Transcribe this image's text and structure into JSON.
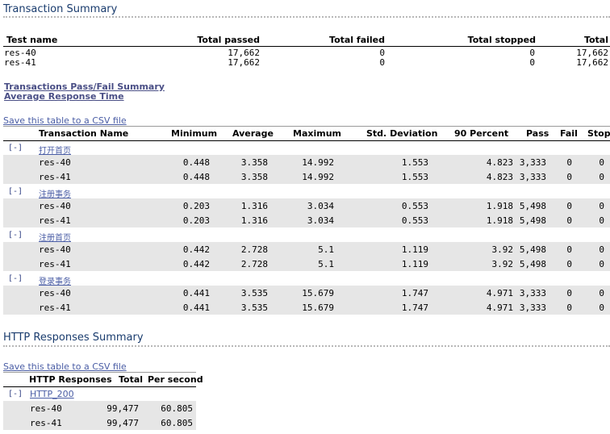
{
  "transaction_summary": {
    "title": "Transaction Summary",
    "headers": [
      "Test name",
      "Total passed",
      "Total failed",
      "Total stopped",
      "Total"
    ],
    "rows": [
      [
        "res-40",
        "17,662",
        "0",
        "0",
        "17,662"
      ],
      [
        "res-41",
        "17,662",
        "0",
        "0",
        "17,662"
      ]
    ]
  },
  "links": {
    "pass_fail": "Transactions Pass/Fail Summary",
    "avg_response": "Average Response Time"
  },
  "transactions_table": {
    "csv_link": "Save this table to a CSV file",
    "headers": [
      "Transaction Name",
      "Minimum",
      "Average",
      "Maximum",
      "Std. Deviation",
      "90 Percent",
      "Pass",
      "Fail",
      "Stop"
    ],
    "groups": [
      {
        "toggle": "[-]",
        "name": "打开首页",
        "rows": [
          [
            "res-40",
            "0.448",
            "3.358",
            "14.992",
            "1.553",
            "4.823",
            "3,333",
            "0",
            "0"
          ],
          [
            "res-41",
            "0.448",
            "3.358",
            "14.992",
            "1.553",
            "4.823",
            "3,333",
            "0",
            "0"
          ]
        ]
      },
      {
        "toggle": "[-]",
        "name": "注册事务",
        "rows": [
          [
            "res-40",
            "0.203",
            "1.316",
            "3.034",
            "0.553",
            "1.918",
            "5,498",
            "0",
            "0"
          ],
          [
            "res-41",
            "0.203",
            "1.316",
            "3.034",
            "0.553",
            "1.918",
            "5,498",
            "0",
            "0"
          ]
        ]
      },
      {
        "toggle": "[-]",
        "name": "注册首页",
        "rows": [
          [
            "res-40",
            "0.442",
            "2.728",
            "5.1",
            "1.119",
            "3.92",
            "5,498",
            "0",
            "0"
          ],
          [
            "res-41",
            "0.442",
            "2.728",
            "5.1",
            "1.119",
            "3.92",
            "5,498",
            "0",
            "0"
          ]
        ]
      },
      {
        "toggle": "[-]",
        "name": "登录事务",
        "rows": [
          [
            "res-40",
            "0.441",
            "3.535",
            "15.679",
            "1.747",
            "4.971",
            "3,333",
            "0",
            "0"
          ],
          [
            "res-41",
            "0.441",
            "3.535",
            "15.679",
            "1.747",
            "4.971",
            "3,333",
            "0",
            "0"
          ]
        ]
      }
    ]
  },
  "http_summary": {
    "title": "HTTP Responses Summary",
    "csv_link": "Save this table to a CSV file",
    "headers": [
      "HTTP Responses",
      "Total",
      "Per second"
    ],
    "group": {
      "toggle": "[-]",
      "name": "HTTP_200"
    },
    "rows": [
      [
        "res-40",
        "99,477",
        "60.805"
      ],
      [
        "res-41",
        "99,477",
        "60.805"
      ]
    ]
  }
}
